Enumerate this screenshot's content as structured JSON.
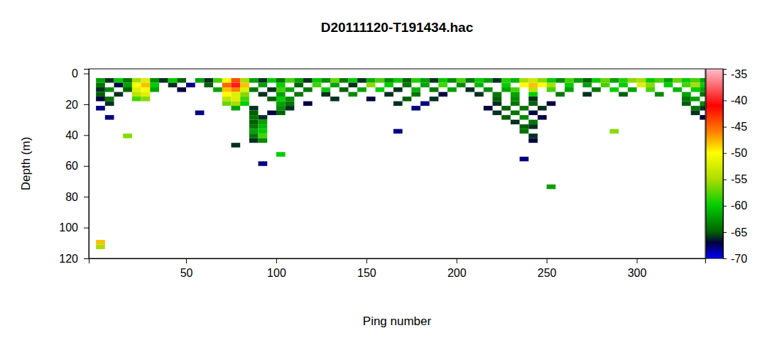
{
  "chart_data": {
    "type": "heatmap",
    "title": "D20111120-T191434.hac",
    "xlabel": "Ping number",
    "ylabel": "Depth (m)",
    "xlim": [
      -4,
      338
    ],
    "ylim": [
      120,
      -3
    ],
    "xticks": [
      50,
      100,
      150,
      200,
      250,
      300
    ],
    "yticks": [
      0,
      20,
      40,
      60,
      80,
      100,
      120
    ],
    "color_range": [
      -70,
      -34
    ],
    "color_ticks": [
      -35,
      -40,
      -45,
      -50,
      -55,
      -60,
      -65,
      -70
    ],
    "cell_size": [
      5,
      3
    ],
    "cells": [
      [
        0,
        3,
        -62
      ],
      [
        5,
        3,
        -66
      ],
      [
        10,
        3,
        -60
      ],
      [
        15,
        3,
        -64
      ],
      [
        20,
        3,
        -55
      ],
      [
        25,
        3,
        -52
      ],
      [
        30,
        3,
        -63
      ],
      [
        35,
        3,
        -66
      ],
      [
        40,
        3,
        -60
      ],
      [
        45,
        3,
        -65
      ],
      [
        55,
        3,
        -62
      ],
      [
        60,
        3,
        -66
      ],
      [
        65,
        3,
        -58
      ],
      [
        70,
        3,
        -50
      ],
      [
        75,
        3,
        -44
      ],
      [
        80,
        3,
        -55
      ],
      [
        85,
        3,
        -62
      ],
      [
        90,
        3,
        -66
      ],
      [
        95,
        3,
        -60
      ],
      [
        100,
        3,
        -64
      ],
      [
        105,
        3,
        -58
      ],
      [
        110,
        3,
        -62
      ],
      [
        115,
        3,
        -66
      ],
      [
        120,
        3,
        -60
      ],
      [
        125,
        3,
        -63
      ],
      [
        130,
        3,
        -57
      ],
      [
        135,
        3,
        -64
      ],
      [
        140,
        3,
        -60
      ],
      [
        145,
        3,
        -66
      ],
      [
        150,
        3,
        -61
      ],
      [
        155,
        3,
        -58
      ],
      [
        160,
        3,
        -63
      ],
      [
        165,
        3,
        -60
      ],
      [
        170,
        3,
        -65
      ],
      [
        175,
        3,
        -59
      ],
      [
        180,
        3,
        -62
      ],
      [
        185,
        3,
        -66
      ],
      [
        190,
        3,
        -60
      ],
      [
        195,
        3,
        -63
      ],
      [
        200,
        3,
        -58
      ],
      [
        205,
        3,
        -64
      ],
      [
        210,
        3,
        -60
      ],
      [
        215,
        3,
        -62
      ],
      [
        220,
        3,
        -66
      ],
      [
        225,
        3,
        -59
      ],
      [
        230,
        3,
        -61
      ],
      [
        235,
        3,
        -55
      ],
      [
        240,
        3,
        -53
      ],
      [
        245,
        3,
        -56
      ],
      [
        250,
        3,
        -60
      ],
      [
        255,
        3,
        -63
      ],
      [
        260,
        3,
        -58
      ],
      [
        265,
        3,
        -62
      ],
      [
        270,
        3,
        -65
      ],
      [
        275,
        3,
        -60
      ],
      [
        280,
        3,
        -57
      ],
      [
        285,
        3,
        -62
      ],
      [
        290,
        3,
        -59
      ],
      [
        295,
        3,
        -56
      ],
      [
        300,
        3,
        -55
      ],
      [
        305,
        3,
        -60
      ],
      [
        310,
        3,
        -58
      ],
      [
        315,
        3,
        -62
      ],
      [
        320,
        3,
        -57
      ],
      [
        325,
        3,
        -60
      ],
      [
        330,
        3,
        -58
      ],
      [
        335,
        3,
        -62
      ],
      [
        0,
        6,
        -64
      ],
      [
        10,
        6,
        -67
      ],
      [
        15,
        6,
        -62
      ],
      [
        20,
        6,
        -50
      ],
      [
        25,
        6,
        -48
      ],
      [
        30,
        6,
        -60
      ],
      [
        40,
        6,
        -66
      ],
      [
        50,
        6,
        -68
      ],
      [
        60,
        6,
        -65
      ],
      [
        70,
        6,
        -45
      ],
      [
        75,
        6,
        -40
      ],
      [
        80,
        6,
        -48
      ],
      [
        90,
        6,
        -62
      ],
      [
        100,
        6,
        -60
      ],
      [
        110,
        6,
        -65
      ],
      [
        120,
        6,
        -58
      ],
      [
        130,
        6,
        -62
      ],
      [
        140,
        6,
        -66
      ],
      [
        150,
        6,
        -56
      ],
      [
        160,
        6,
        -60
      ],
      [
        170,
        6,
        -64
      ],
      [
        180,
        6,
        -62
      ],
      [
        190,
        6,
        -58
      ],
      [
        200,
        6,
        -63
      ],
      [
        210,
        6,
        -61
      ],
      [
        225,
        6,
        -60
      ],
      [
        235,
        6,
        -50
      ],
      [
        240,
        6,
        -48
      ],
      [
        245,
        6,
        -50
      ],
      [
        250,
        6,
        -55
      ],
      [
        260,
        6,
        -60
      ],
      [
        270,
        6,
        -62
      ],
      [
        280,
        6,
        -58
      ],
      [
        290,
        6,
        -60
      ],
      [
        300,
        6,
        -52
      ],
      [
        305,
        6,
        -56
      ],
      [
        315,
        6,
        -60
      ],
      [
        325,
        6,
        -58
      ],
      [
        330,
        6,
        -55
      ],
      [
        335,
        6,
        -60
      ],
      [
        0,
        9,
        -66
      ],
      [
        5,
        9,
        -63
      ],
      [
        15,
        9,
        -65
      ],
      [
        20,
        9,
        -52
      ],
      [
        25,
        9,
        -50
      ],
      [
        30,
        9,
        -62
      ],
      [
        45,
        9,
        -67
      ],
      [
        65,
        9,
        -62
      ],
      [
        70,
        9,
        -48
      ],
      [
        75,
        9,
        -46
      ],
      [
        80,
        9,
        -52
      ],
      [
        85,
        9,
        -64
      ],
      [
        95,
        9,
        -66
      ],
      [
        100,
        9,
        -58
      ],
      [
        105,
        9,
        -62
      ],
      [
        115,
        9,
        -64
      ],
      [
        125,
        9,
        -60
      ],
      [
        135,
        9,
        -65
      ],
      [
        145,
        9,
        -62
      ],
      [
        155,
        9,
        -60
      ],
      [
        165,
        9,
        -66
      ],
      [
        175,
        9,
        -61
      ],
      [
        185,
        9,
        -64
      ],
      [
        195,
        9,
        -62
      ],
      [
        205,
        9,
        -66
      ],
      [
        215,
        9,
        -63
      ],
      [
        225,
        9,
        -62
      ],
      [
        230,
        9,
        -58
      ],
      [
        240,
        9,
        -54
      ],
      [
        250,
        9,
        -58
      ],
      [
        260,
        9,
        -62
      ],
      [
        275,
        9,
        -64
      ],
      [
        285,
        9,
        -60
      ],
      [
        295,
        9,
        -62
      ],
      [
        305,
        9,
        -58
      ],
      [
        320,
        9,
        -61
      ],
      [
        330,
        9,
        -60
      ],
      [
        335,
        9,
        -62
      ],
      [
        0,
        12,
        -65
      ],
      [
        10,
        12,
        -66
      ],
      [
        20,
        12,
        -54
      ],
      [
        25,
        12,
        -52
      ],
      [
        70,
        12,
        -50
      ],
      [
        75,
        12,
        -52
      ],
      [
        80,
        12,
        -56
      ],
      [
        90,
        12,
        -66
      ],
      [
        100,
        12,
        -62
      ],
      [
        110,
        12,
        -64
      ],
      [
        125,
        12,
        -66
      ],
      [
        140,
        12,
        -63
      ],
      [
        160,
        12,
        -66
      ],
      [
        175,
        12,
        -64
      ],
      [
        190,
        12,
        -67
      ],
      [
        210,
        12,
        -66
      ],
      [
        220,
        12,
        -64
      ],
      [
        230,
        12,
        -62
      ],
      [
        240,
        12,
        -60
      ],
      [
        255,
        12,
        -64
      ],
      [
        270,
        12,
        -66
      ],
      [
        290,
        12,
        -65
      ],
      [
        310,
        12,
        -63
      ],
      [
        325,
        12,
        -62
      ],
      [
        335,
        12,
        -64
      ],
      [
        0,
        15,
        -67
      ],
      [
        5,
        15,
        -64
      ],
      [
        20,
        15,
        -58
      ],
      [
        25,
        15,
        -56
      ],
      [
        70,
        15,
        -54
      ],
      [
        75,
        15,
        -52
      ],
      [
        80,
        15,
        -58
      ],
      [
        95,
        15,
        -65
      ],
      [
        100,
        15,
        -60
      ],
      [
        105,
        15,
        -63
      ],
      [
        130,
        15,
        -66
      ],
      [
        150,
        15,
        -67
      ],
      [
        170,
        15,
        -65
      ],
      [
        185,
        15,
        -66
      ],
      [
        220,
        15,
        -65
      ],
      [
        230,
        15,
        -63
      ],
      [
        240,
        15,
        -66
      ],
      [
        325,
        15,
        -64
      ],
      [
        330,
        15,
        -62
      ],
      [
        5,
        18,
        -66
      ],
      [
        70,
        18,
        -57
      ],
      [
        75,
        18,
        -55
      ],
      [
        80,
        18,
        -60
      ],
      [
        100,
        18,
        -62
      ],
      [
        105,
        18,
        -64
      ],
      [
        115,
        18,
        -67
      ],
      [
        165,
        18,
        -66
      ],
      [
        180,
        18,
        -68
      ],
      [
        220,
        18,
        -66
      ],
      [
        230,
        18,
        -64
      ],
      [
        240,
        18,
        -65
      ],
      [
        250,
        18,
        -67
      ],
      [
        325,
        18,
        -65
      ],
      [
        335,
        18,
        -63
      ],
      [
        0,
        21,
        -68
      ],
      [
        75,
        21,
        -62
      ],
      [
        85,
        21,
        -66
      ],
      [
        100,
        21,
        -63
      ],
      [
        105,
        21,
        -66
      ],
      [
        175,
        21,
        -68
      ],
      [
        215,
        21,
        -67
      ],
      [
        225,
        21,
        -65
      ],
      [
        235,
        21,
        -64
      ],
      [
        245,
        21,
        -66
      ],
      [
        330,
        21,
        -64
      ],
      [
        335,
        21,
        -66
      ],
      [
        85,
        24,
        -65
      ],
      [
        95,
        24,
        -67
      ],
      [
        100,
        24,
        -65
      ],
      [
        220,
        24,
        -66
      ],
      [
        230,
        24,
        -64
      ],
      [
        240,
        24,
        -67
      ],
      [
        330,
        24,
        -66
      ],
      [
        5,
        27,
        -68
      ],
      [
        85,
        27,
        -64
      ],
      [
        90,
        27,
        -66
      ],
      [
        225,
        27,
        -65
      ],
      [
        235,
        27,
        -63
      ],
      [
        245,
        27,
        -67
      ],
      [
        335,
        27,
        -67
      ],
      [
        85,
        30,
        -65
      ],
      [
        90,
        30,
        -62
      ],
      [
        230,
        30,
        -66
      ],
      [
        240,
        30,
        -64
      ],
      [
        85,
        33,
        -64
      ],
      [
        90,
        33,
        -61
      ],
      [
        235,
        33,
        -65
      ],
      [
        240,
        33,
        -66
      ],
      [
        85,
        36,
        -62
      ],
      [
        90,
        36,
        -60
      ],
      [
        235,
        36,
        -64
      ],
      [
        85,
        39,
        -64
      ],
      [
        90,
        39,
        -58
      ],
      [
        240,
        39,
        -66
      ],
      [
        85,
        42,
        -66
      ],
      [
        90,
        42,
        -63
      ],
      [
        240,
        42,
        -67
      ],
      [
        15,
        39,
        -56
      ],
      [
        100,
        51,
        -60
      ],
      [
        90,
        57,
        -68
      ],
      [
        235,
        54,
        -68
      ],
      [
        250,
        72,
        -62
      ],
      [
        285,
        36,
        -56
      ],
      [
        55,
        24,
        -68
      ],
      [
        75,
        45,
        -66
      ],
      [
        165,
        36,
        -68
      ],
      [
        0,
        108,
        -48
      ],
      [
        0,
        111,
        -55
      ]
    ]
  }
}
